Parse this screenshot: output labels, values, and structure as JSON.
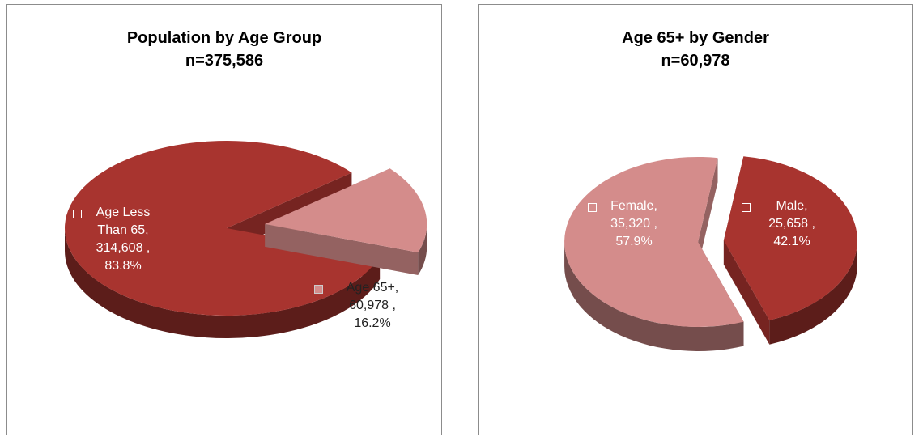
{
  "chart_data": [
    {
      "type": "pie",
      "title": "Population by Age Group",
      "subtitle": "n=375,586",
      "categories": [
        "Age Less Than 65,",
        "Age 65+,"
      ],
      "values": [
        314608,
        60978
      ],
      "value_labels": [
        "314,608 ,",
        "60,978 ,"
      ],
      "percents": [
        83.8,
        16.2
      ],
      "percent_labels": [
        "83.8%",
        "16.2%"
      ],
      "colors": [
        "#a8342f",
        "#d48c8b"
      ]
    },
    {
      "type": "pie",
      "title": "Age 65+ by Gender",
      "subtitle": "n=60,978",
      "categories": [
        "Female,",
        "Male,"
      ],
      "values": [
        35320,
        25658
      ],
      "value_labels": [
        "35,320 ,",
        "25,658 ,"
      ],
      "percents": [
        57.9,
        42.1
      ],
      "percent_labels": [
        "57.9%",
        "42.1%"
      ],
      "colors": [
        "#d48c8b",
        "#a8342f"
      ]
    }
  ]
}
